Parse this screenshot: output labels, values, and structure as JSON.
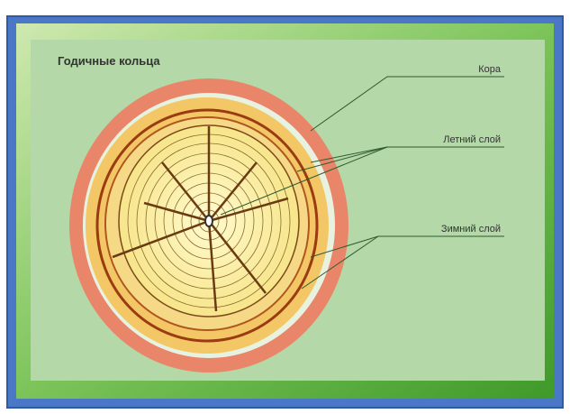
{
  "title": "Годичные кольца",
  "labels": {
    "bark": "Кора",
    "summer": "Летний слой",
    "winter": "Зимний слой"
  }
}
